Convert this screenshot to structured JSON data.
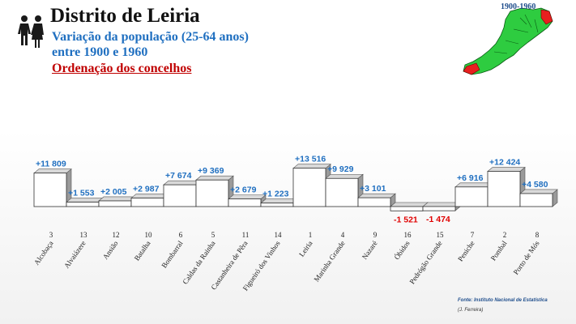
{
  "header": {
    "title": "Distrito de Leiria",
    "subtitle_line1": "Variação da população (25-64 anos)",
    "subtitle_line2": "entre 1900 e 1960",
    "ordering": "Ordenação dos concelhos"
  },
  "map": {
    "period": "1900-1960"
  },
  "footer": {
    "source": "Fonte: Instituto Nacional de Estatística",
    "author": "(J. Ferreira)"
  },
  "colors": {
    "title": "#111111",
    "subtitle": "#1f6fc0",
    "ordering": "#c00000",
    "positive_label": "#1f6fc0",
    "negative_label": "#e00000",
    "bar": "#ffffff"
  },
  "chart_data": {
    "type": "bar",
    "categories": [
      "Alcobaça",
      "Alvaiázere",
      "Ansião",
      "Batalha",
      "Bombarral",
      "Caldas da Rainha",
      "Castanheira de Pêra",
      "Figueiró dos Vinhos",
      "Leiria",
      "Marinha Grande",
      "Nazaré",
      "Óbidos",
      "Pedrógão Grande",
      "Peniche",
      "Pombal",
      "Porto de Mós"
    ],
    "values": [
      11809,
      1553,
      2005,
      2987,
      7674,
      9369,
      2679,
      1223,
      13516,
      9929,
      3101,
      -1521,
      -1474,
      6916,
      12424,
      4580
    ],
    "labels": [
      "+11 809",
      "+1 553",
      "+2 005",
      "+2 987",
      "+7 674",
      "+9 369",
      "+2 679",
      "+1 223",
      "+13 516",
      "+9 929",
      "+3 101",
      "-1 521",
      "-1 474",
      "+6 916",
      "+12 424",
      "+4 580"
    ],
    "ranks": [
      "3",
      "13",
      "12",
      "10",
      "6",
      "5",
      "11",
      "14",
      "1",
      "4",
      "9",
      "16",
      "15",
      "7",
      "2",
      "8"
    ],
    "grid": false
  }
}
